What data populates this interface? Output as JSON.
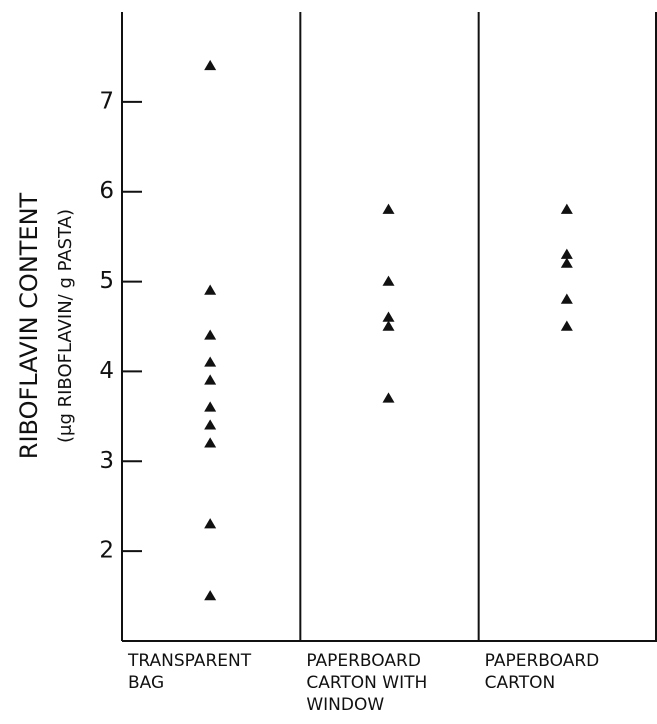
{
  "chart_data": {
    "type": "strip",
    "ylabel": "RIBOFLAVIN CONTENT",
    "ylabel_sub": "(μg RIBOFLAVIN/ g PASTA)",
    "categories": [
      "TRANSPARENT BAG",
      "PAPERBOARD CARTON WITH WINDOW",
      "PAPERBOARD CARTON"
    ],
    "values": [
      [
        7.4,
        4.9,
        4.4,
        4.1,
        3.9,
        3.6,
        3.4,
        3.2,
        2.3,
        1.5
      ],
      [
        5.8,
        5.0,
        4.6,
        4.5,
        3.7
      ],
      [
        5.8,
        5.3,
        5.2,
        4.8,
        4.5
      ]
    ],
    "color": "#111111",
    "ylim": [
      1,
      8
    ],
    "yticks": [
      2,
      3,
      4,
      5,
      6,
      7
    ]
  }
}
